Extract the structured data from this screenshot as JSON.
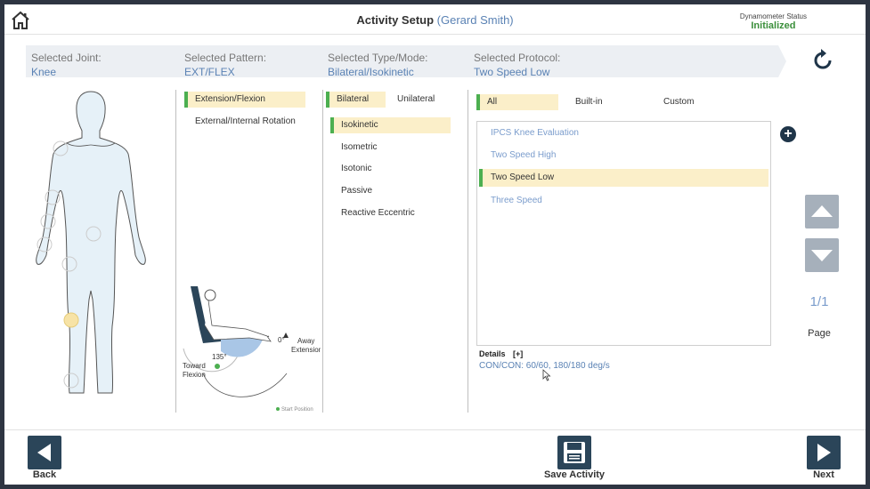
{
  "header": {
    "title": "Activity Setup",
    "patient": "(Gerard Smith)",
    "dynamometer_label": "Dynamometer Status",
    "dynamometer_value": "Initialized"
  },
  "selection": {
    "joint_label": "Selected Joint:",
    "joint_value": "Knee",
    "pattern_label": "Selected Pattern:",
    "pattern_value": "EXT/FLEX",
    "type_label": "Selected Type/Mode:",
    "type_value": "Bilateral/Isokinetic",
    "protocol_label": "Selected Protocol:",
    "protocol_value": "Two Speed Low"
  },
  "patterns": [
    "Extension/Flexion",
    "External/Internal Rotation"
  ],
  "sides": [
    "Bilateral",
    "Unilateral"
  ],
  "modes": [
    "Isokinetic",
    "Isometric",
    "Isotonic",
    "Passive",
    "Reactive Eccentric"
  ],
  "protocol_filters": [
    "All",
    "Built-in",
    "Custom"
  ],
  "protocols": [
    "IPCS Knee Evaluation",
    "Two Speed High",
    "Two Speed Low",
    "Three Speed"
  ],
  "diagram": {
    "angle_max": "135°",
    "angle_zero": "0°",
    "toward": "Toward\nFlexion",
    "away": "Away\nExtension",
    "start_position": "Start Position"
  },
  "pagination": {
    "page": "1/1",
    "label": "Page"
  },
  "details": {
    "label": "Details",
    "toggle": "[+]",
    "value": "CON/CON: 60/60, 180/180 deg/s"
  },
  "footer": {
    "back": "Back",
    "save": "Save Activity",
    "next": "Next"
  },
  "colors": {
    "accent_green": "#4caf50",
    "highlight": "#fbefc9",
    "link_blue": "#5a82b4",
    "dark_button": "#2b4559"
  }
}
